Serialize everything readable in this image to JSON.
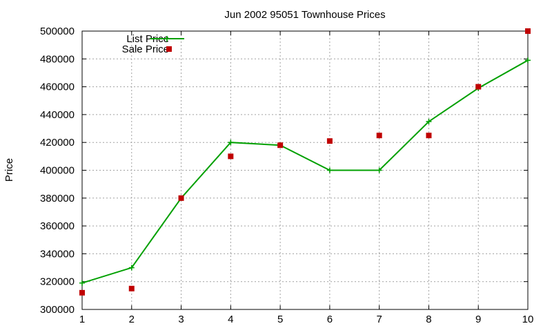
{
  "chart_data": {
    "type": "line",
    "title": "Jun 2002 95051 Townhouse Prices",
    "xlabel": "",
    "ylabel": "Price",
    "x": [
      1,
      2,
      3,
      4,
      5,
      6,
      7,
      8,
      9,
      10
    ],
    "xlim": [
      1,
      10
    ],
    "ylim": [
      300000,
      500000
    ],
    "xticks": [
      1,
      2,
      3,
      4,
      5,
      6,
      7,
      8,
      9,
      10
    ],
    "yticks": [
      300000,
      320000,
      340000,
      360000,
      380000,
      400000,
      420000,
      440000,
      460000,
      480000,
      500000
    ],
    "grid": true,
    "legend_position": "top-left",
    "series": [
      {
        "name": "List Price",
        "style": "linespoints",
        "marker": "plus",
        "color": "#00a000",
        "values": [
          319000,
          330000,
          380000,
          420000,
          418000,
          400000,
          400000,
          435000,
          459000,
          479000
        ]
      },
      {
        "name": "Sale Price",
        "style": "points",
        "marker": "square",
        "color": "#c00000",
        "values": [
          312000,
          315000,
          380000,
          410000,
          418000,
          421000,
          425000,
          425000,
          460000,
          500000
        ]
      }
    ]
  }
}
